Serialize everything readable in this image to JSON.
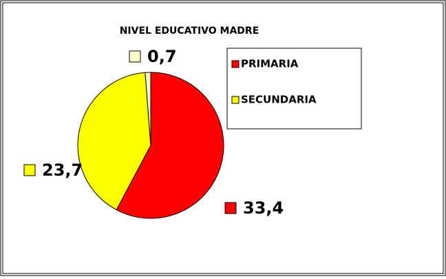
{
  "chart_data": {
    "type": "pie",
    "title": "NIVEL EDUCATIVO MADRE",
    "categories": [
      "PRIMARIA",
      "SECUNDARIA",
      null
    ],
    "values": [
      33.4,
      23.7,
      0.7
    ],
    "value_labels": [
      "33,4",
      "23,7",
      "0,7"
    ],
    "colors": [
      "#ff0000",
      "#ffff00",
      "#ffffcc"
    ],
    "legend": "upper right"
  }
}
